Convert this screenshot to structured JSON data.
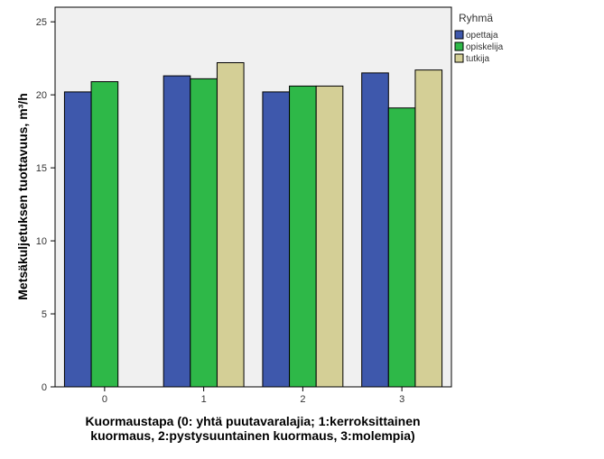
{
  "chart_data": {
    "type": "bar",
    "title": "",
    "xlabel_lines": [
      "Kuormaustapa (0: yhtä puutavaralajia; 1:kerroksittainen",
      "kuormaus, 2:pystysuuntainen kuormaus, 3:molempia)"
    ],
    "ylabel": "Metsäkuljetuksen tuottavuus, m³/h",
    "categories": [
      "0",
      "1",
      "2",
      "3"
    ],
    "ylim": [
      0,
      26
    ],
    "yticks": [
      0,
      5,
      10,
      15,
      20,
      25
    ],
    "grid": false,
    "legend_position": "right",
    "legend_title": "Ryhmä",
    "series": [
      {
        "name": "opettaja",
        "color": "#3e58ac",
        "values": [
          20.2,
          21.3,
          20.2,
          21.5
        ]
      },
      {
        "name": "opiskelija",
        "color": "#2eb848",
        "values": [
          20.9,
          21.1,
          20.6,
          19.1
        ]
      },
      {
        "name": "tutkija",
        "color": "#d4cf96",
        "values": [
          null,
          22.2,
          20.6,
          21.7
        ]
      }
    ]
  }
}
